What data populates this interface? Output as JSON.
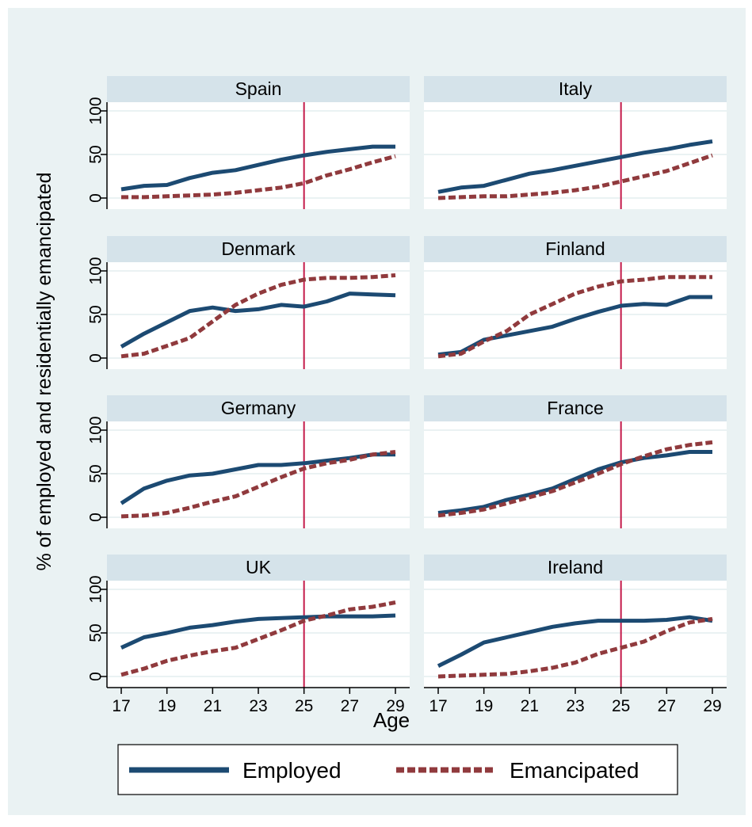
{
  "chart_data": {
    "type": "line",
    "ylabel": "% of employed and residentially emancipated",
    "xlabel": "Age",
    "x_ticks": [
      17,
      19,
      21,
      23,
      25,
      27,
      29
    ],
    "y_ticks": [
      0,
      50,
      100
    ],
    "xlim": [
      17,
      29
    ],
    "ylim": [
      0,
      100
    ],
    "reference_line_x": 25,
    "grid": true,
    "legend": {
      "position": "bottom",
      "entries": [
        {
          "name": "Employed",
          "color": "#1c4a72",
          "style": "solid"
        },
        {
          "name": "Emancipated",
          "color": "#903a3d",
          "style": "dashed"
        }
      ]
    },
    "colors": {
      "background": "#eaf2f3",
      "plot_bg": "#ffffff",
      "strip": "#d5e3ea",
      "grid": "#eaf2f3",
      "reference": "#c41a4a",
      "employed": "#1c4a72",
      "emancipated": "#903a3d"
    },
    "x": [
      17,
      18,
      19,
      20,
      21,
      22,
      23,
      24,
      25,
      26,
      27,
      28,
      29
    ],
    "panels": [
      {
        "title": "Spain",
        "series": [
          {
            "name": "Employed",
            "values": [
              10,
              14,
              15,
              23,
              29,
              32,
              38,
              44,
              49,
              53,
              56,
              59,
              59
            ]
          },
          {
            "name": "Emancipated",
            "values": [
              1,
              1,
              2,
              3,
              4,
              6,
              9,
              12,
              17,
              26,
              33,
              41,
              48
            ]
          }
        ]
      },
      {
        "title": "Italy",
        "series": [
          {
            "name": "Employed",
            "values": [
              7,
              12,
              14,
              21,
              28,
              32,
              37,
              42,
              47,
              52,
              56,
              61,
              65
            ]
          },
          {
            "name": "Emancipated",
            "values": [
              0,
              1,
              2,
              2,
              4,
              6,
              9,
              13,
              19,
              25,
              31,
              40,
              49
            ]
          }
        ]
      },
      {
        "title": "Denmark",
        "series": [
          {
            "name": "Employed",
            "values": [
              13,
              28,
              41,
              54,
              58,
              54,
              56,
              61,
              59,
              65,
              74,
              73,
              72
            ]
          },
          {
            "name": "Emancipated",
            "values": [
              2,
              5,
              14,
              23,
              42,
              61,
              74,
              84,
              90,
              92,
              92,
              93,
              95
            ]
          }
        ]
      },
      {
        "title": "Finland",
        "series": [
          {
            "name": "Employed",
            "values": [
              4,
              7,
              21,
              26,
              31,
              36,
              45,
              53,
              60,
              62,
              61,
              70,
              70
            ]
          },
          {
            "name": "Emancipated",
            "values": [
              2,
              5,
              19,
              31,
              50,
              62,
              74,
              82,
              88,
              90,
              93,
              93,
              93
            ]
          }
        ]
      },
      {
        "title": "Germany",
        "series": [
          {
            "name": "Employed",
            "values": [
              16,
              33,
              42,
              48,
              50,
              55,
              60,
              60,
              62,
              65,
              68,
              72,
              72
            ]
          },
          {
            "name": "Emancipated",
            "values": [
              1,
              2,
              5,
              11,
              18,
              24,
              35,
              46,
              56,
              62,
              66,
              72,
              75
            ]
          }
        ]
      },
      {
        "title": "France",
        "series": [
          {
            "name": "Employed",
            "values": [
              5,
              8,
              12,
              20,
              26,
              33,
              44,
              55,
              63,
              68,
              71,
              75,
              75
            ]
          },
          {
            "name": "Emancipated",
            "values": [
              2,
              5,
              9,
              16,
              23,
              30,
              40,
              50,
              61,
              70,
              78,
              83,
              86
            ]
          }
        ]
      },
      {
        "title": "UK",
        "series": [
          {
            "name": "Employed",
            "values": [
              33,
              45,
              50,
              56,
              59,
              63,
              66,
              67,
              68,
              69,
              69,
              69,
              70
            ]
          },
          {
            "name": "Emancipated",
            "values": [
              2,
              9,
              18,
              24,
              29,
              33,
              43,
              53,
              64,
              70,
              77,
              80,
              85
            ]
          }
        ]
      },
      {
        "title": "Ireland",
        "series": [
          {
            "name": "Employed",
            "values": [
              12,
              25,
              39,
              45,
              51,
              57,
              61,
              64,
              64,
              64,
              65,
              68,
              64
            ]
          },
          {
            "name": "Emancipated",
            "values": [
              0,
              1,
              2,
              3,
              6,
              10,
              16,
              26,
              33,
              40,
              52,
              62,
              66
            ]
          }
        ]
      }
    ]
  }
}
